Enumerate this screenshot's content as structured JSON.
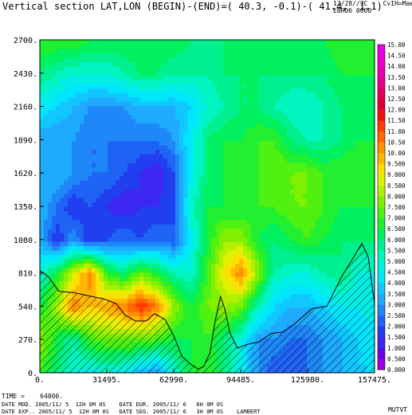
{
  "header": {
    "title": "Vertical section LAT,LON (BEGIN)-(END)=( 40.3, -0.1)-( 41.4,  1.1)",
    "corner_line1": "12/28//7C    CvIH=Mae",
    "corner_line2": "EBR06 0600"
  },
  "footer": {
    "time": "TIME =    64800.",
    "line1": "DATE MOD. 2005/11/ 5  12H 0M 0S    DATE EUR. 2005/11/ 6   6H 0M 0S",
    "line2": "DATE EXP.. 2005/11/ 5  12H 0M 0S   DATE SEG. 2005/11/ 6   3H 0M 0S    LAMBERT",
    "right": "MUTVT"
  },
  "chart_data": {
    "type": "heatmap",
    "title": "Vertical section LAT,LON (BEGIN)-(END)=( 40.3, -0.1)-( 41.4,  1.1)",
    "xlabel": "",
    "ylabel": "",
    "xlim": [
      0,
      157475
    ],
    "ylim": [
      0,
      2700
    ],
    "x_ticks": [
      0,
      31495,
      62990,
      94485,
      125980,
      157475
    ],
    "x_tick_labels": [
      "0.",
      "31495.",
      "62990.",
      "94485.",
      "125980.",
      "157475."
    ],
    "y_ticks": [
      0,
      270,
      540,
      810,
      1080,
      1350,
      1620,
      1890,
      2160,
      2430,
      2700
    ],
    "y_tick_labels": [
      "0.",
      "270.",
      "540.",
      "810.",
      "1080.",
      "1350.",
      "1620.",
      "1890.",
      "2160.",
      "2430.",
      "2700."
    ],
    "colorbar": {
      "levels": [
        0.0,
        0.5,
        1.0,
        1.5,
        2.0,
        2.5,
        3.0,
        3.5,
        4.0,
        4.5,
        5.0,
        5.5,
        6.0,
        6.5,
        7.0,
        7.5,
        8.0,
        8.5,
        9.0,
        9.5,
        10.0,
        10.5,
        11.0,
        11.5,
        12.0,
        12.5,
        13.0,
        13.5,
        14.0,
        14.5,
        15.0
      ],
      "labels": [
        "0.000",
        "0.500",
        "1.000",
        "1.500",
        "2.000",
        "2.500",
        "3.000",
        "3.500",
        "4.000",
        "4.500",
        "5.000",
        "5.500",
        "6.000",
        "6.500",
        "7.000",
        "7.500",
        "8.000",
        "8.500",
        "9.000",
        "9.500",
        "10.00",
        "10.50",
        "11.00",
        "11.50",
        "12.00",
        "12.50",
        "13.00",
        "13.50",
        "14.00",
        "14.50",
        "15.00"
      ],
      "colors": [
        "#a000e0",
        "#6a00e6",
        "#3c28f0",
        "#2040f0",
        "#1f64f5",
        "#1f88f8",
        "#1eaaff",
        "#10c8ff",
        "#00e6ff",
        "#00f0e6",
        "#00f5c0",
        "#00f090",
        "#00f060",
        "#20f030",
        "#50f010",
        "#80f000",
        "#b0f000",
        "#e0f000",
        "#ffe000",
        "#ffb800",
        "#ff9000",
        "#ff6800",
        "#ff3c00",
        "#f01010",
        "#e00030",
        "#e00060",
        "#e40090",
        "#e800b4",
        "#ea00d0",
        "#e800e8"
      ]
    },
    "terrain_profile": [
      [
        0,
        830
      ],
      [
        4000,
        780
      ],
      [
        9000,
        660
      ],
      [
        16000,
        650
      ],
      [
        24000,
        620
      ],
      [
        30000,
        600
      ],
      [
        36000,
        560
      ],
      [
        40000,
        470
      ],
      [
        45000,
        420
      ],
      [
        50000,
        420
      ],
      [
        54000,
        480
      ],
      [
        59000,
        430
      ],
      [
        63000,
        300
      ],
      [
        67000,
        130
      ],
      [
        71000,
        70
      ],
      [
        74500,
        30
      ],
      [
        77000,
        50
      ],
      [
        80000,
        160
      ],
      [
        82500,
        420
      ],
      [
        85000,
        620
      ],
      [
        87000,
        520
      ],
      [
        89500,
        320
      ],
      [
        93000,
        200
      ],
      [
        97500,
        230
      ],
      [
        103000,
        250
      ],
      [
        109000,
        320
      ],
      [
        114500,
        330
      ],
      [
        120000,
        400
      ],
      [
        128000,
        520
      ],
      [
        135000,
        540
      ],
      [
        142000,
        780
      ],
      [
        147000,
        920
      ],
      [
        151500,
        1050
      ],
      [
        154500,
        940
      ],
      [
        157475,
        560
      ]
    ],
    "value_grid_x": [
      0,
      7874,
      15748,
      23621,
      31495,
      39369,
      47243,
      55116,
      62990,
      70864,
      78738,
      86611,
      94485,
      102359,
      110233,
      118106,
      125980,
      133854,
      141728,
      149601,
      157475
    ],
    "value_grid_y": [
      0,
      270,
      540,
      810,
      1080,
      1350,
      1620,
      1890,
      2160,
      2430,
      2700
    ],
    "values": [
      [
        7.0,
        6.0,
        5.0,
        4.5,
        5.0,
        4.5,
        3.5,
        3.0,
        5.0,
        6.5,
        7.0,
        6.0,
        4.5,
        3.0,
        2.0,
        2.0,
        2.5,
        3.0,
        3.5,
        4.0,
        4.0
      ],
      [
        8.0,
        6.5,
        5.5,
        7.0,
        7.5,
        7.5,
        7.5,
        7.0,
        6.5,
        6.5,
        7.0,
        6.0,
        5.0,
        3.0,
        3.0,
        2.5,
        2.5,
        3.0,
        3.5,
        4.0,
        4.0
      ],
      [
        6.5,
        8.0,
        10.5,
        9.5,
        10.0,
        10.5,
        11.5,
        10.5,
        8.0,
        6.5,
        7.5,
        8.0,
        7.5,
        5.5,
        4.0,
        3.5,
        3.5,
        4.0,
        4.5,
        4.5,
        5.0
      ],
      [
        5.0,
        6.5,
        8.5,
        10.5,
        7.0,
        6.0,
        7.5,
        6.5,
        5.5,
        5.0,
        7.0,
        9.0,
        10.5,
        8.0,
        5.5,
        5.0,
        5.0,
        5.5,
        6.0,
        5.0,
        5.0
      ],
      [
        3.5,
        1.5,
        3.0,
        1.5,
        2.0,
        2.5,
        2.0,
        2.5,
        2.0,
        4.5,
        6.5,
        8.0,
        8.0,
        6.5,
        6.0,
        6.5,
        7.0,
        6.5,
        6.0,
        6.0,
        6.0
      ],
      [
        3.5,
        2.5,
        1.5,
        2.0,
        1.5,
        1.0,
        1.5,
        1.5,
        2.0,
        5.0,
        6.5,
        6.5,
        6.5,
        7.0,
        7.0,
        7.5,
        7.5,
        7.0,
        6.5,
        6.5,
        6.5
      ],
      [
        3.5,
        3.5,
        3.0,
        2.5,
        2.5,
        2.0,
        1.5,
        1.0,
        2.0,
        4.5,
        6.0,
        6.5,
        7.0,
        7.0,
        7.5,
        7.5,
        7.5,
        7.0,
        7.0,
        7.0,
        7.0
      ],
      [
        3.0,
        3.0,
        3.0,
        2.5,
        2.5,
        2.5,
        2.5,
        2.5,
        3.0,
        4.5,
        6.0,
        6.5,
        6.5,
        7.0,
        7.0,
        6.0,
        5.5,
        5.5,
        6.0,
        6.5,
        6.5
      ],
      [
        4.5,
        4.0,
        3.5,
        3.0,
        3.0,
        3.0,
        3.5,
        3.5,
        3.5,
        4.0,
        5.0,
        5.5,
        6.0,
        6.0,
        5.5,
        5.0,
        5.0,
        5.5,
        6.0,
        6.0,
        6.0
      ],
      [
        6.0,
        5.5,
        5.0,
        5.0,
        5.0,
        5.5,
        6.0,
        6.0,
        5.5,
        5.5,
        5.5,
        6.0,
        6.0,
        6.0,
        6.0,
        6.0,
        6.0,
        6.0,
        6.5,
        6.5,
        6.5
      ],
      [
        7.0,
        7.0,
        7.0,
        6.5,
        6.5,
        6.5,
        6.5,
        6.5,
        6.5,
        6.0,
        6.0,
        6.0,
        6.5,
        6.5,
        6.5,
        6.5,
        6.5,
        6.5,
        7.0,
        7.0,
        7.0
      ]
    ]
  }
}
